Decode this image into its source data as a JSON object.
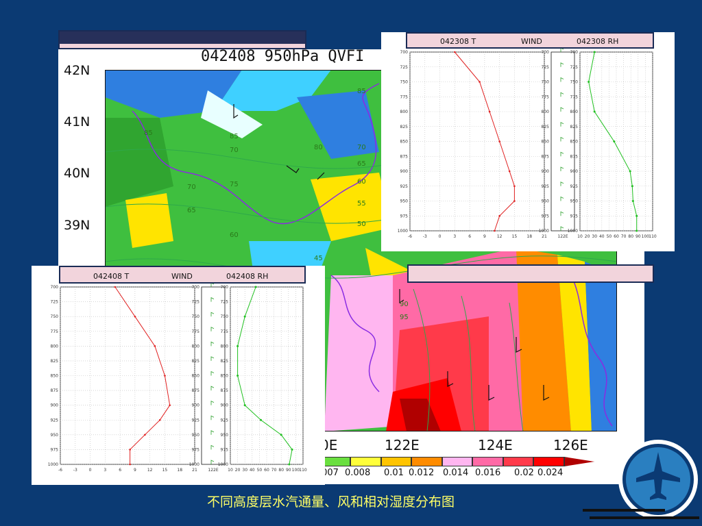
{
  "map": {
    "title": "042408 950hPa QVFI",
    "lat_labels": [
      "42N",
      "41N",
      "40N",
      "39N"
    ],
    "lon_labels": [
      "0E",
      "122E",
      "124E",
      "126E"
    ],
    "colorbar_labels": [
      ".007",
      "0.008",
      "0.01",
      "0.012",
      "0.014",
      "0.016",
      "0.02",
      "0.024"
    ],
    "colorbar_colors": [
      "#6adf3f",
      "#ffff3a",
      "#ffc400",
      "#ff8c00",
      "#ffb6f0",
      "#ff6aa6",
      "#ff3a4a",
      "#ff0000",
      "#b00000"
    ],
    "contour_labels": [
      "85",
      "85",
      "85",
      "70",
      "80",
      "70",
      "65",
      "75",
      "70",
      "60",
      "55",
      "65",
      "50",
      "60",
      "45",
      "90",
      "95"
    ]
  },
  "sounding_top": {
    "t_header": "042308 T",
    "wind_header": "WIND",
    "rh_header": "042308 RH",
    "pressure_levels": [
      "700",
      "725",
      "750",
      "775",
      "800",
      "825",
      "850",
      "875",
      "900",
      "925",
      "950",
      "975",
      "1000"
    ],
    "t_ticks": [
      "-6",
      "-3",
      "0",
      "3",
      "6",
      "9",
      "12",
      "15",
      "18",
      "21"
    ],
    "wind_tick": "122E",
    "rh_ticks": [
      "10",
      "20",
      "30",
      "40",
      "50",
      "60",
      "70",
      "80",
      "90",
      "100",
      "110"
    ],
    "t_profile": [
      {
        "p": 700,
        "t": 3
      },
      {
        "p": 750,
        "t": 8
      },
      {
        "p": 800,
        "t": 10
      },
      {
        "p": 850,
        "t": 12
      },
      {
        "p": 900,
        "t": 14
      },
      {
        "p": 925,
        "t": 15
      },
      {
        "p": 950,
        "t": 15
      },
      {
        "p": 975,
        "t": 12
      },
      {
        "p": 1000,
        "t": 11
      }
    ],
    "rh_profile": [
      {
        "p": 700,
        "rh": 30
      },
      {
        "p": 750,
        "rh": 22
      },
      {
        "p": 800,
        "rh": 30
      },
      {
        "p": 850,
        "rh": 57
      },
      {
        "p": 900,
        "rh": 79
      },
      {
        "p": 925,
        "rh": 82
      },
      {
        "p": 950,
        "rh": 83
      },
      {
        "p": 975,
        "rh": 88
      },
      {
        "p": 1000,
        "rh": 88
      }
    ]
  },
  "sounding_bottom": {
    "t_header": "042408 T",
    "wind_header": "WIND",
    "rh_header": "042408 RH",
    "pressure_levels": [
      "700",
      "725",
      "750",
      "775",
      "800",
      "825",
      "850",
      "875",
      "900",
      "925",
      "950",
      "975",
      "1000"
    ],
    "t_ticks": [
      "-6",
      "-3",
      "0",
      "3",
      "6",
      "9",
      "12",
      "15",
      "18",
      "21"
    ],
    "wind_tick": "122E",
    "rh_ticks": [
      "10",
      "20",
      "30",
      "40",
      "50",
      "60",
      "70",
      "80",
      "90",
      "100",
      "110"
    ],
    "t_profile": [
      {
        "p": 700,
        "t": 5
      },
      {
        "p": 750,
        "t": 9
      },
      {
        "p": 800,
        "t": 13
      },
      {
        "p": 850,
        "t": 15
      },
      {
        "p": 900,
        "t": 16
      },
      {
        "p": 925,
        "t": 14
      },
      {
        "p": 950,
        "t": 11
      },
      {
        "p": 975,
        "t": 8
      },
      {
        "p": 1000,
        "t": 8
      }
    ],
    "rh_profile": [
      {
        "p": 700,
        "rh": 45
      },
      {
        "p": 750,
        "rh": 30
      },
      {
        "p": 800,
        "rh": 20
      },
      {
        "p": 850,
        "rh": 20
      },
      {
        "p": 900,
        "rh": 30
      },
      {
        "p": 925,
        "rh": 52
      },
      {
        "p": 950,
        "rh": 80
      },
      {
        "p": 975,
        "rh": 95
      },
      {
        "p": 1000,
        "rh": 91
      }
    ]
  },
  "caption": "不同高度层水汽通量、风和相对湿度分布图",
  "logo_icon": "airplane-icon"
}
